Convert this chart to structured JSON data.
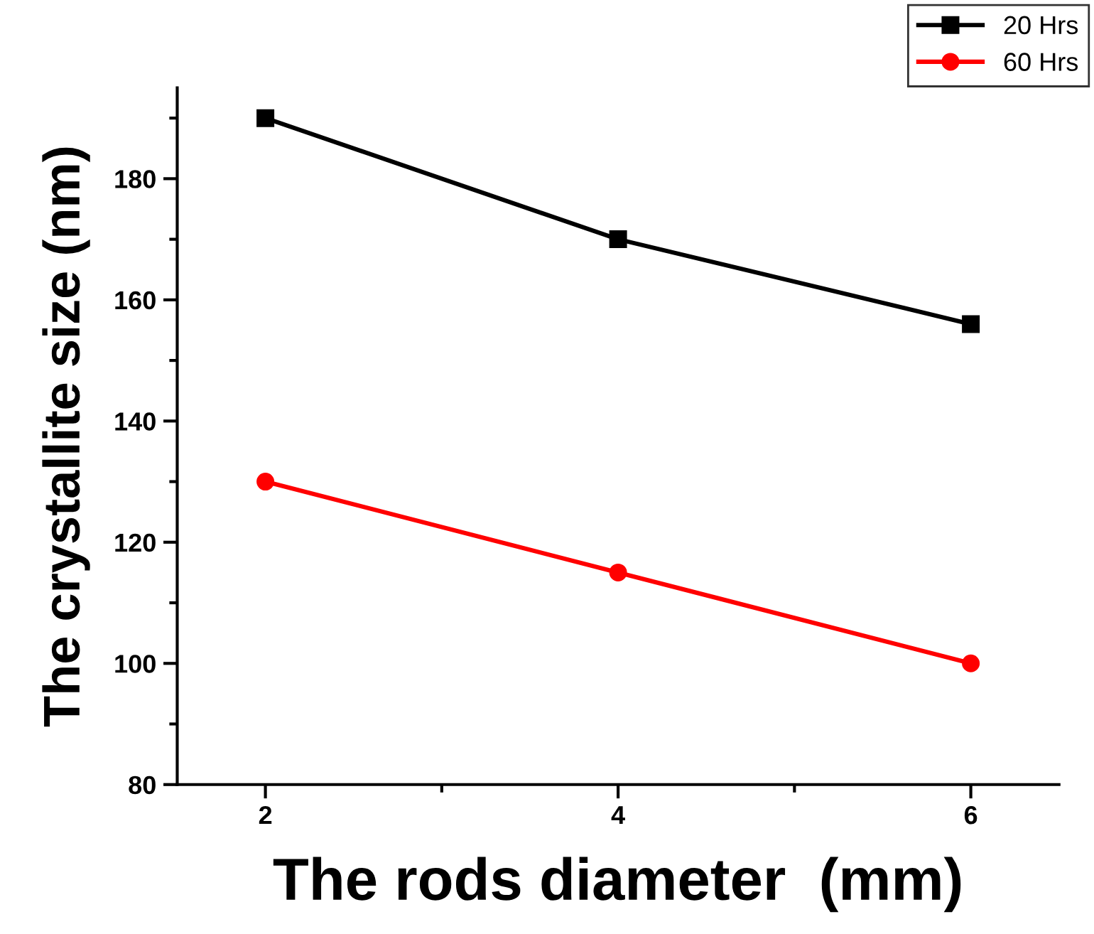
{
  "chart_data": {
    "type": "line",
    "xlabel": "The rods diameter  (mm)",
    "ylabel": "The crystallite size (nm)",
    "x": [
      2,
      4,
      6
    ],
    "series": [
      {
        "name": "20 Hrs",
        "color": "#000000",
        "marker": "square",
        "values": [
          190,
          170,
          156
        ]
      },
      {
        "name": "60 Hrs",
        "color": "#ff0000",
        "marker": "circle",
        "values": [
          130,
          115,
          100
        ]
      }
    ],
    "xlim": [
      1.5,
      6.5
    ],
    "ylim": [
      80,
      195
    ],
    "xticks": [
      2,
      {
        "value": 3,
        "label": null
      },
      4,
      {
        "value": 5,
        "label": null
      },
      6
    ],
    "yticks": [
      80,
      {
        "value": 90,
        "label": null
      },
      100,
      {
        "value": 110,
        "label": null
      },
      120,
      {
        "value": 130,
        "label": null
      },
      140,
      {
        "value": 150,
        "label": null
      },
      160,
      {
        "value": 170,
        "label": null
      },
      180,
      {
        "value": 190,
        "label": null
      }
    ],
    "legend": "top right",
    "grid": false,
    "line_style": "solid"
  }
}
